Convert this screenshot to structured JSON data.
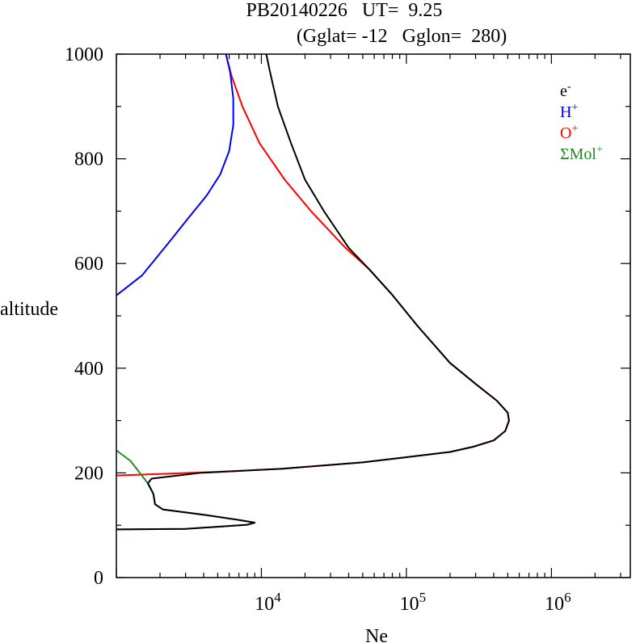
{
  "chart_data": {
    "type": "line",
    "title": "PB20140226   UT=  9.25",
    "subtitle": "(Gglat= -12   Gglon=  280)",
    "xlabel": "Ne",
    "ylabel": "altitude",
    "x_scale": "log",
    "xlim": [
      1000,
      3500000
    ],
    "ylim": [
      0,
      1000
    ],
    "x_ticks": [
      {
        "value": 10000,
        "base": "10",
        "exp": "4"
      },
      {
        "value": 100000,
        "base": "10",
        "exp": "5"
      },
      {
        "value": 1000000,
        "base": "10",
        "exp": "6"
      }
    ],
    "y_ticks": [
      {
        "value": 0,
        "label": "0"
      },
      {
        "value": 200,
        "label": "200"
      },
      {
        "value": 400,
        "label": "400"
      },
      {
        "value": 600,
        "label": "600"
      },
      {
        "value": 800,
        "label": "800"
      },
      {
        "value": 1000,
        "label": "1000"
      }
    ],
    "legend_position": "top-right",
    "series": [
      {
        "name": "e",
        "name_sup": "-",
        "color": "#000000",
        "points": [
          [
            1000,
            92
          ],
          [
            3000,
            93
          ],
          [
            8000,
            101
          ],
          [
            9000,
            105
          ],
          [
            7000,
            110
          ],
          [
            4000,
            120
          ],
          [
            2100,
            130
          ],
          [
            1850,
            140
          ],
          [
            1800,
            160
          ],
          [
            1650,
            180
          ],
          [
            1750,
            189
          ],
          [
            3800,
            200
          ],
          [
            14000,
            208
          ],
          [
            50000,
            220
          ],
          [
            100000,
            230
          ],
          [
            200000,
            240
          ],
          [
            290000,
            250
          ],
          [
            400000,
            262
          ],
          [
            480000,
            280
          ],
          [
            510000,
            300
          ],
          [
            500000,
            315
          ],
          [
            420000,
            338
          ],
          [
            300000,
            370
          ],
          [
            200000,
            410
          ],
          [
            120000,
            480
          ],
          [
            80000,
            540
          ],
          [
            55000,
            590
          ],
          [
            40000,
            630
          ],
          [
            27000,
            700
          ],
          [
            20000,
            760
          ],
          [
            16000,
            830
          ],
          [
            13000,
            900
          ],
          [
            11500,
            965
          ],
          [
            10800,
            1000
          ]
        ]
      },
      {
        "name": "H",
        "name_sup": "+",
        "color": "#0000ff",
        "points": [
          [
            1000,
            539
          ],
          [
            1500,
            577
          ],
          [
            2300,
            640
          ],
          [
            3200,
            690
          ],
          [
            4200,
            730
          ],
          [
            5200,
            770
          ],
          [
            6000,
            815
          ],
          [
            6400,
            865
          ],
          [
            6400,
            915
          ],
          [
            6100,
            965
          ],
          [
            5700,
            1000
          ]
        ]
      },
      {
        "name": "O",
        "name_sup": "+",
        "color": "#ff0000",
        "points": [
          [
            1000,
            195
          ],
          [
            2000,
            198
          ],
          [
            5000,
            202
          ],
          [
            14000,
            208
          ],
          [
            50000,
            220
          ],
          [
            100000,
            230
          ],
          [
            200000,
            240
          ],
          [
            290000,
            250
          ],
          [
            400000,
            262
          ],
          [
            480000,
            280
          ],
          [
            510000,
            300
          ],
          [
            500000,
            315
          ],
          [
            420000,
            338
          ],
          [
            300000,
            370
          ],
          [
            200000,
            410
          ],
          [
            120000,
            480
          ],
          [
            80000,
            540
          ],
          [
            55000,
            590
          ],
          [
            38000,
            630
          ],
          [
            22000,
            700
          ],
          [
            14500,
            760
          ],
          [
            9700,
            830
          ],
          [
            7400,
            900
          ],
          [
            6200,
            960
          ],
          [
            5700,
            1000
          ]
        ]
      },
      {
        "name": "ΣMol",
        "name_sup": "+",
        "color": "#228b22",
        "points": [
          [
            1000,
            243
          ],
          [
            1250,
            223
          ],
          [
            1450,
            200
          ],
          [
            1650,
            180
          ],
          [
            1800,
            160
          ],
          [
            1850,
            140
          ],
          [
            2100,
            130
          ],
          [
            4000,
            120
          ],
          [
            7000,
            110
          ],
          [
            9000,
            105
          ],
          [
            8000,
            101
          ],
          [
            3000,
            93
          ],
          [
            1000,
            92
          ]
        ]
      }
    ]
  }
}
